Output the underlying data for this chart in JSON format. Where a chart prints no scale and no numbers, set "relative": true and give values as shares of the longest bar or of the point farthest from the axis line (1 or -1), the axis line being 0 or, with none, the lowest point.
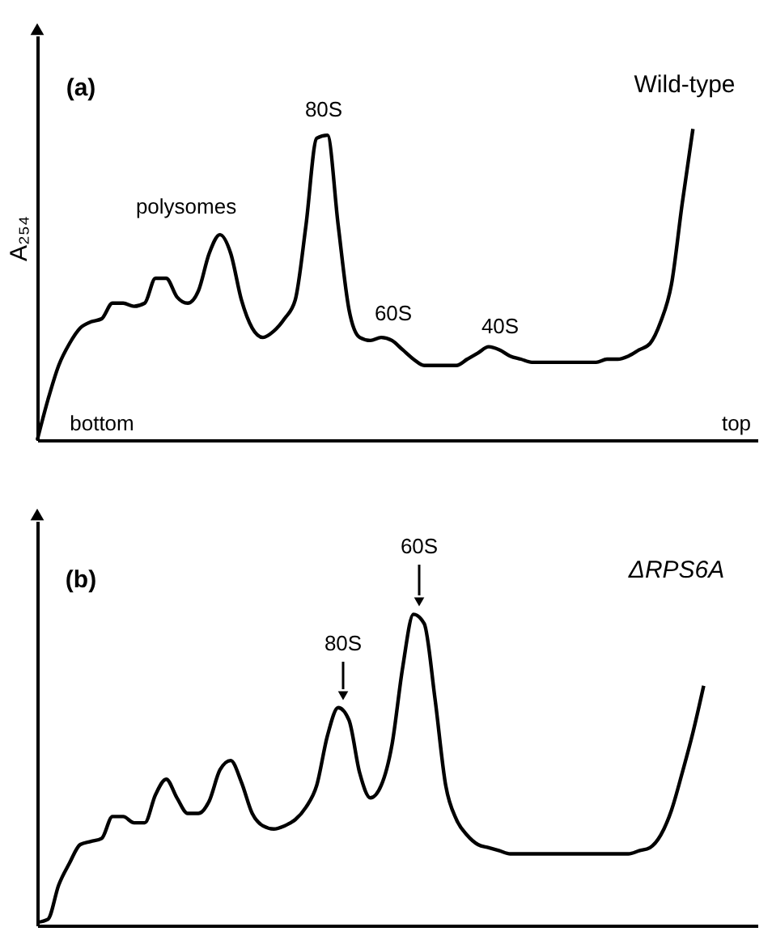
{
  "chart_data": [
    {
      "type": "line",
      "relative": true,
      "color": "#000000",
      "ylabel": "A₂₅₄",
      "tick_labels": false,
      "categories": [
        null,
        null,
        null,
        null,
        null,
        null,
        null,
        null,
        null,
        null,
        null,
        null,
        null,
        null,
        null,
        null,
        null,
        null,
        null,
        null,
        null,
        null,
        null,
        null,
        null,
        null,
        null,
        null,
        null,
        null,
        null,
        null,
        null,
        null,
        null,
        null,
        null,
        null,
        null,
        null,
        null,
        null,
        null,
        null,
        null,
        null,
        null,
        null,
        null,
        null,
        null,
        null,
        null,
        null,
        null,
        null,
        null,
        null,
        null,
        null,
        null,
        null,
        null,
        null,
        null,
        null,
        null,
        null
      ],
      "values": [
        0,
        0.13,
        0.24,
        0.31,
        0.36,
        0.38,
        0.39,
        0.44,
        0.44,
        0.43,
        0.44,
        0.52,
        0.52,
        0.46,
        0.44,
        0.48,
        0.6,
        0.66,
        0.6,
        0.45,
        0.36,
        0.33,
        0.35,
        0.39,
        0.45,
        0.69,
        0.97,
        0.98,
        0.69,
        0.42,
        0.33,
        0.32,
        0.33,
        0.32,
        0.29,
        0.26,
        0.24,
        0.24,
        0.24,
        0.24,
        0.26,
        0.28,
        0.3,
        0.29,
        0.27,
        0.26,
        0.25,
        0.25,
        0.25,
        0.25,
        0.25,
        0.25,
        0.25,
        0.26,
        0.26,
        0.27,
        0.29,
        0.31,
        0.38,
        0.5,
        0.76,
        1.0,
        null,
        null,
        null,
        null,
        null,
        null
      ],
      "annotations": [
        "(a)",
        "Wild-type",
        "polysomes",
        "80S",
        "60S",
        "40S",
        "bottom",
        "top"
      ]
    },
    {
      "type": "line",
      "relative": true,
      "color": "#000000",
      "tick_labels": false,
      "categories": [
        null,
        null,
        null,
        null,
        null,
        null,
        null,
        null,
        null,
        null,
        null,
        null,
        null,
        null,
        null,
        null,
        null,
        null,
        null,
        null,
        null,
        null,
        null,
        null,
        null,
        null,
        null,
        null,
        null,
        null,
        null,
        null,
        null,
        null,
        null,
        null,
        null,
        null,
        null,
        null,
        null,
        null,
        null,
        null,
        null,
        null,
        null,
        null,
        null,
        null,
        null,
        null,
        null,
        null,
        null,
        null,
        null,
        null,
        null,
        null,
        null,
        null,
        null,
        null,
        null,
        null,
        null,
        null
      ],
      "values": [
        0.01,
        0.02,
        0.13,
        0.2,
        0.26,
        0.27,
        0.28,
        0.35,
        0.35,
        0.33,
        0.33,
        0.42,
        0.47,
        0.41,
        0.36,
        0.36,
        0.4,
        0.5,
        0.53,
        0.46,
        0.36,
        0.32,
        0.31,
        0.32,
        0.34,
        0.38,
        0.45,
        0.61,
        0.7,
        0.66,
        0.49,
        0.41,
        0.45,
        0.58,
        0.83,
        1.0,
        0.97,
        0.73,
        0.45,
        0.34,
        0.29,
        0.26,
        0.25,
        0.24,
        0.23,
        0.23,
        0.23,
        0.23,
        0.23,
        0.23,
        0.23,
        0.23,
        0.23,
        0.23,
        0.23,
        0.23,
        0.24,
        0.25,
        0.29,
        0.37,
        0.49,
        0.62,
        0.77,
        null,
        null,
        null,
        null,
        null
      ],
      "annotations": [
        "(b)",
        "ΔRPS6A",
        "60S",
        "80S"
      ]
    }
  ]
}
